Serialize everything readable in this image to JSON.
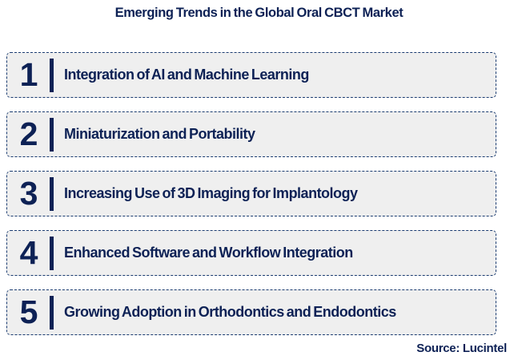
{
  "title": "Emerging Trends in the Global Oral CBCT Market",
  "source": "Source: Lucintel",
  "colors": {
    "navy": "#0d2155",
    "border": "#1b3c71",
    "box_bg": "#efefef",
    "page_bg": "#ffffff"
  },
  "trends": [
    {
      "number": "1",
      "label": "Integration of AI and Machine Learning"
    },
    {
      "number": "2",
      "label": "Miniaturization and Portability"
    },
    {
      "number": "3",
      "label": "Increasing Use of 3D Imaging for Implantology"
    },
    {
      "number": "4",
      "label": "Enhanced Software and Workflow Integration"
    },
    {
      "number": "5",
      "label": "Growing Adoption in Orthodontics and Endodontics"
    }
  ]
}
